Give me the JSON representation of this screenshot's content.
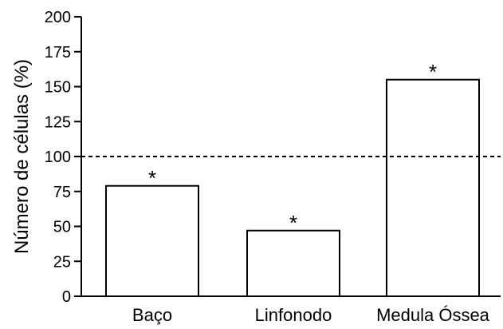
{
  "chart_data": {
    "type": "bar",
    "categories": [
      "Baço",
      "Linfonodo",
      "Medula Óssea"
    ],
    "values": [
      79,
      47,
      155
    ],
    "significance": [
      "*",
      "*",
      "*"
    ],
    "ylabel": "Número de células (%)",
    "xlabel": "",
    "ylim": [
      0,
      200
    ],
    "yticks": [
      0,
      25,
      50,
      75,
      100,
      125,
      150,
      175,
      200
    ],
    "reference_line": 100,
    "grid": false,
    "bar_fill": "#ffffff",
    "bar_stroke": "#000000"
  }
}
